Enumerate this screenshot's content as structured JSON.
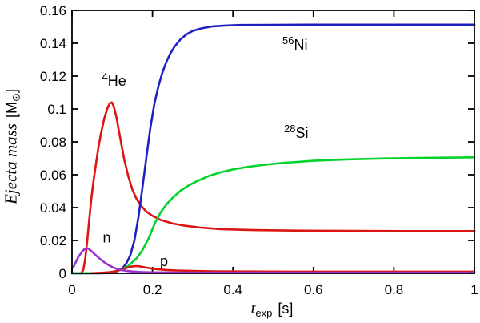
{
  "figure": {
    "background": "#ffffff",
    "axis_color": "#000000"
  },
  "chart_data": {
    "type": "line",
    "title": "",
    "xlabel": {
      "main": "t",
      "sub": "exp",
      "unit": "[s]"
    },
    "ylabel": {
      "main": "Ejecta mass",
      "unit_pre": "[M",
      "unit_sub": "⊙",
      "unit_post": "]"
    },
    "xlim": [
      0,
      1
    ],
    "ylim": [
      0,
      0.16
    ],
    "grid": false,
    "legend_position": "inline-annotations",
    "xticks": {
      "values": [
        0,
        0.2,
        0.4,
        0.6,
        0.8,
        1
      ],
      "labels": [
        "0",
        "0.2",
        "0.4",
        "0.6",
        "0.8",
        "1"
      ]
    },
    "yticks": {
      "values": [
        0,
        0.02,
        0.04,
        0.06,
        0.08,
        0.1,
        0.12,
        0.14,
        0.16
      ],
      "labels": [
        "0",
        "0.02",
        "0.04",
        "0.06",
        "0.08",
        "0.1",
        "0.12",
        "0.14",
        "0.16"
      ]
    },
    "series": [
      {
        "name": "4He",
        "color": "#dd1512",
        "points": [
          [
            0.022,
            0
          ],
          [
            0.028,
            0.002
          ],
          [
            0.033,
            0.009
          ],
          [
            0.038,
            0.02
          ],
          [
            0.043,
            0.033
          ],
          [
            0.048,
            0.045
          ],
          [
            0.053,
            0.0555
          ],
          [
            0.058,
            0.064
          ],
          [
            0.065,
            0.0755
          ],
          [
            0.072,
            0.085
          ],
          [
            0.08,
            0.094
          ],
          [
            0.088,
            0.1005
          ],
          [
            0.094,
            0.1035
          ],
          [
            0.099,
            0.104
          ],
          [
            0.104,
            0.1015
          ],
          [
            0.11,
            0.0955
          ],
          [
            0.116,
            0.0875
          ],
          [
            0.123,
            0.078
          ],
          [
            0.13,
            0.069
          ],
          [
            0.14,
            0.059
          ],
          [
            0.15,
            0.051
          ],
          [
            0.16,
            0.0455
          ],
          [
            0.17,
            0.0415
          ],
          [
            0.185,
            0.0375
          ],
          [
            0.2,
            0.035
          ],
          [
            0.22,
            0.0325
          ],
          [
            0.25,
            0.0303
          ],
          [
            0.28,
            0.029
          ],
          [
            0.32,
            0.0278
          ],
          [
            0.37,
            0.0269
          ],
          [
            0.45,
            0.0263
          ],
          [
            0.55,
            0.026
          ],
          [
            0.7,
            0.0258
          ],
          [
            0.85,
            0.0257
          ],
          [
            1,
            0.0257
          ]
        ]
      },
      {
        "name": "56Ni",
        "color": "#1f1fc2",
        "points": [
          [
            0,
            0
          ],
          [
            0.06,
            0
          ],
          [
            0.09,
            0.0002
          ],
          [
            0.11,
            0.001
          ],
          [
            0.125,
            0.003
          ],
          [
            0.135,
            0.006
          ],
          [
            0.145,
            0.011
          ],
          [
            0.155,
            0.02
          ],
          [
            0.165,
            0.034
          ],
          [
            0.175,
            0.052
          ],
          [
            0.185,
            0.071
          ],
          [
            0.195,
            0.089
          ],
          [
            0.205,
            0.1035
          ],
          [
            0.215,
            0.114
          ],
          [
            0.225,
            0.1225
          ],
          [
            0.235,
            0.129
          ],
          [
            0.245,
            0.134
          ],
          [
            0.255,
            0.138
          ],
          [
            0.27,
            0.1425
          ],
          [
            0.285,
            0.1455
          ],
          [
            0.3,
            0.1475
          ],
          [
            0.32,
            0.149
          ],
          [
            0.35,
            0.1503
          ],
          [
            0.38,
            0.1508
          ],
          [
            0.42,
            0.1511
          ],
          [
            0.5,
            0.1512
          ],
          [
            0.6,
            0.1513
          ],
          [
            0.8,
            0.1513
          ],
          [
            1,
            0.1513
          ]
        ]
      },
      {
        "name": "28Si",
        "color": "#00d42a",
        "points": [
          [
            0,
            0
          ],
          [
            0.08,
            0.0002
          ],
          [
            0.1,
            0.0008
          ],
          [
            0.12,
            0.002
          ],
          [
            0.14,
            0.0045
          ],
          [
            0.16,
            0.009
          ],
          [
            0.175,
            0.014
          ],
          [
            0.19,
            0.021
          ],
          [
            0.205,
            0.03
          ],
          [
            0.22,
            0.037
          ],
          [
            0.235,
            0.042
          ],
          [
            0.25,
            0.046
          ],
          [
            0.27,
            0.0503
          ],
          [
            0.29,
            0.0535
          ],
          [
            0.31,
            0.056
          ],
          [
            0.34,
            0.0592
          ],
          [
            0.37,
            0.0615
          ],
          [
            0.4,
            0.0632
          ],
          [
            0.44,
            0.0649
          ],
          [
            0.48,
            0.0661
          ],
          [
            0.53,
            0.0673
          ],
          [
            0.6,
            0.0685
          ],
          [
            0.68,
            0.0693
          ],
          [
            0.78,
            0.0699
          ],
          [
            0.88,
            0.0703
          ],
          [
            1,
            0.0706
          ]
        ]
      },
      {
        "name": "p",
        "color": "#dd1512",
        "points": [
          [
            0.05,
            0.0001
          ],
          [
            0.07,
            0.0003
          ],
          [
            0.09,
            0.0006
          ],
          [
            0.1,
            0.0009
          ],
          [
            0.11,
            0.0014
          ],
          [
            0.12,
            0.002
          ],
          [
            0.13,
            0.0028
          ],
          [
            0.14,
            0.0036
          ],
          [
            0.15,
            0.0042
          ],
          [
            0.158,
            0.0044
          ],
          [
            0.166,
            0.0043
          ],
          [
            0.175,
            0.0039
          ],
          [
            0.185,
            0.0034
          ],
          [
            0.2,
            0.0028
          ],
          [
            0.215,
            0.0024
          ],
          [
            0.235,
            0.002
          ],
          [
            0.26,
            0.0017
          ],
          [
            0.3,
            0.0014
          ],
          [
            0.35,
            0.0012
          ],
          [
            0.42,
            0.0011
          ],
          [
            0.55,
            0.001
          ],
          [
            0.75,
            0.001
          ],
          [
            1,
            0.001
          ]
        ]
      },
      {
        "name": "n",
        "color": "#9933cc",
        "points": [
          [
            0.004,
            0.004
          ],
          [
            0.008,
            0.006
          ],
          [
            0.012,
            0.008
          ],
          [
            0.016,
            0.01
          ],
          [
            0.021,
            0.0118
          ],
          [
            0.026,
            0.0135
          ],
          [
            0.031,
            0.0147
          ],
          [
            0.036,
            0.0152
          ],
          [
            0.041,
            0.0149
          ],
          [
            0.046,
            0.014
          ],
          [
            0.052,
            0.0127
          ],
          [
            0.06,
            0.0108
          ],
          [
            0.07,
            0.0087
          ],
          [
            0.08,
            0.0068
          ],
          [
            0.09,
            0.0051
          ],
          [
            0.1,
            0.0038
          ],
          [
            0.11,
            0.0028
          ],
          [
            0.12,
            0.0021
          ],
          [
            0.135,
            0.0015
          ],
          [
            0.15,
            0.0011
          ],
          [
            0.17,
            0.0008
          ],
          [
            0.2,
            0.0006
          ],
          [
            0.25,
            0.0005
          ],
          [
            0.35,
            0.0004
          ],
          [
            0.5,
            0.0004
          ],
          [
            0.75,
            0.0004
          ],
          [
            1,
            0.0004
          ]
        ]
      }
    ],
    "annotations": [
      {
        "sup": "4",
        "base": "He",
        "x": 0.0745,
        "y": 0.1171
      },
      {
        "sup": "56",
        "base": "Ni",
        "x": 0.5229,
        "y": 0.139
      },
      {
        "sup": "28",
        "base": "Si",
        "x": 0.5269,
        "y": 0.0854
      },
      {
        "sup": "",
        "base": "n",
        "x": 0.0765,
        "y": 0.0217
      },
      {
        "sup": "",
        "base": "p",
        "x": 0.2187,
        "y": 0.0073
      }
    ]
  }
}
